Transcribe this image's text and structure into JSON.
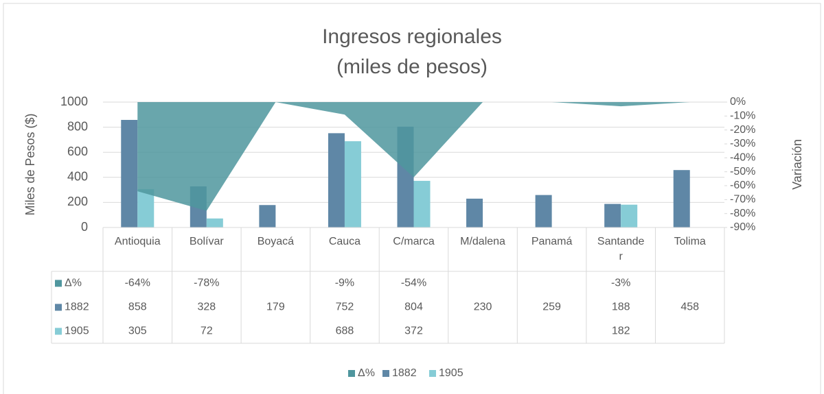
{
  "chart_data": {
    "type": "bar",
    "title": "Ingresos regionales",
    "subtitle": "(miles de pesos)",
    "y_label": "Miles de Pesos ($)",
    "y2_label": "Variación",
    "categories": [
      "Antioquia",
      "Bolívar",
      "Boyacá",
      "Cauca",
      "C/marca",
      "M/dalena",
      "Panamá",
      "Santander",
      "Tolima"
    ],
    "series": [
      {
        "name": "Δ%",
        "type": "area",
        "axis": "y2",
        "color": "#4f969e",
        "values": [
          -64,
          -78,
          null,
          -9,
          -54,
          null,
          null,
          -3,
          null
        ],
        "value_labels": [
          "-64%",
          "-78%",
          null,
          "-9%",
          "-54%",
          null,
          null,
          "-3%",
          null
        ]
      },
      {
        "name": "1882",
        "color": "#5f87a6",
        "values": [
          858,
          328,
          179,
          752,
          804,
          230,
          259,
          188,
          458
        ]
      },
      {
        "name": "1905",
        "color": "#86ccd6",
        "values": [
          305,
          72,
          null,
          688,
          372,
          null,
          null,
          182,
          null
        ]
      }
    ],
    "ylim": [
      0,
      1000
    ],
    "yticks": [
      0,
      200,
      400,
      600,
      800,
      1000
    ],
    "y2lim": [
      -90,
      0
    ],
    "y2ticks": [
      {
        "value": 0,
        "label": "0%"
      },
      {
        "value": -10,
        "label": "-10%"
      },
      {
        "value": -20,
        "label": "-20%"
      },
      {
        "value": -30,
        "label": "-30%"
      },
      {
        "value": -40,
        "label": "-40%"
      },
      {
        "value": -50,
        "label": "-50%"
      },
      {
        "value": -60,
        "label": "-60%"
      },
      {
        "value": -70,
        "label": "-70%"
      },
      {
        "value": -80,
        "label": "-80%"
      },
      {
        "value": -90,
        "label": "-90%"
      }
    ],
    "grid": true,
    "legend": "bottom"
  }
}
